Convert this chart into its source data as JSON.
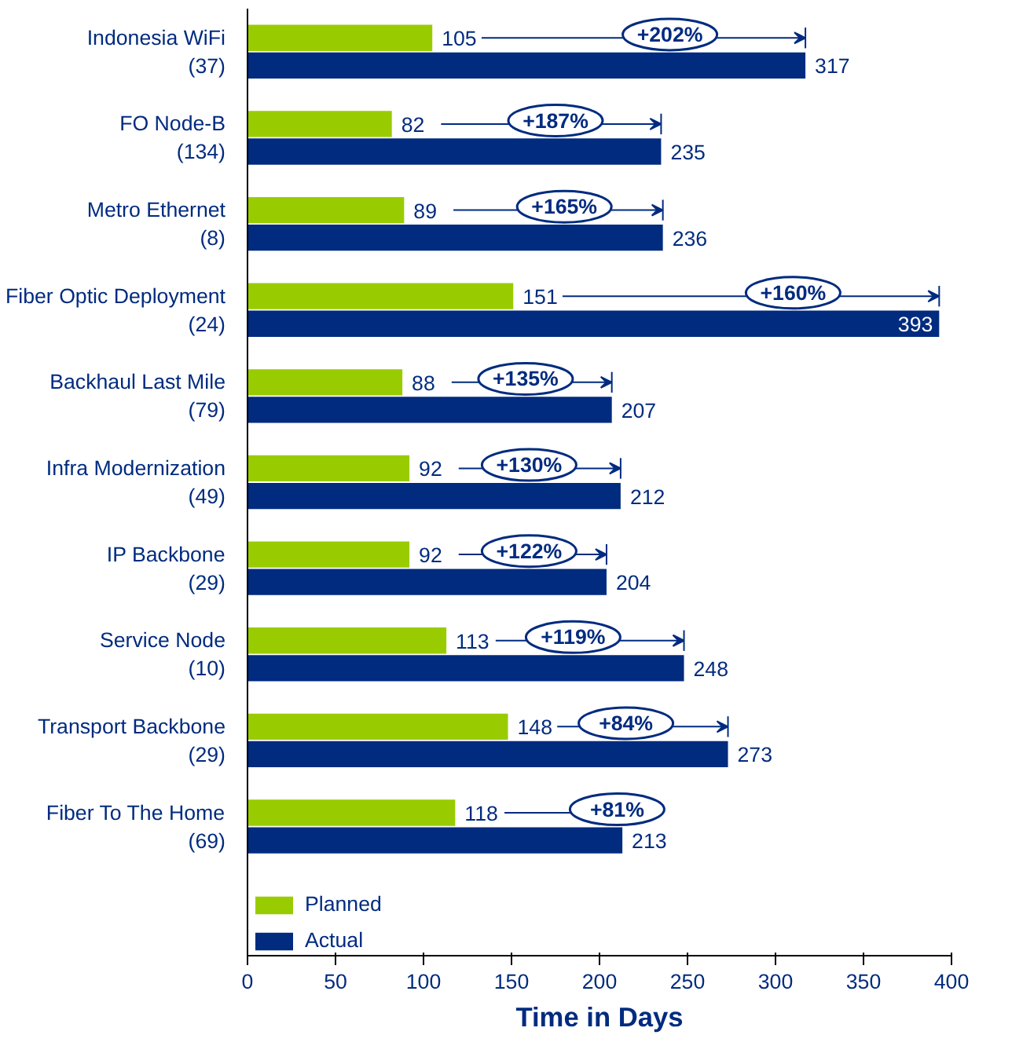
{
  "chart_data": {
    "type": "bar",
    "orientation": "horizontal",
    "xlabel": "Time in Days",
    "categories": [
      "Indonesia WiFi\n(37)",
      "FO Node-B\n(134)",
      "Metro Ethernet\n(8)",
      "Fiber Optic Deployment\n(24)",
      "Backhaul Last Mile\n(79)",
      "Infra Modernization\n(49)",
      "IP Backbone\n(29)",
      "Service Node\n(10)",
      "Transport Backbone\n(29)",
      "Fiber To The Home\n(69)"
    ],
    "series": [
      {
        "name": "Planned",
        "color": "#99cc00",
        "values": [
          105,
          82,
          89,
          151,
          88,
          92,
          92,
          113,
          148,
          118
        ]
      },
      {
        "name": "Actual",
        "color": "#002b7f",
        "values": [
          317,
          235,
          236,
          393,
          207,
          212,
          204,
          248,
          273,
          213
        ]
      }
    ],
    "data_labels": true,
    "annotations": [
      {
        "text": "+202%",
        "x": 240,
        "y": "Indonesia WiFi\n(37)"
      },
      {
        "text": "+187%",
        "x": 175,
        "y": "FO Node-B\n(134)"
      },
      {
        "text": "+165%",
        "x": 180,
        "y": "Metro Ethernet\n(8)"
      },
      {
        "text": "+160%",
        "x": 310,
        "y": "Fiber Optic Deployment\n(24)"
      },
      {
        "text": "+135%",
        "x": 158,
        "y": "Backhaul Last Mile\n(79)"
      },
      {
        "text": "+130%",
        "x": 160,
        "y": "Infra Modernization\n(49)"
      },
      {
        "text": "+122%",
        "x": 160,
        "y": "IP Backbone\n(29)"
      },
      {
        "text": "+119%",
        "x": 185,
        "y": "Service Node\n(10)"
      },
      {
        "text": "+84%",
        "x": 215,
        "y": "Transport Backbone\n(29)"
      },
      {
        "text": "+81%",
        "x": 210,
        "y": "Fiber To The Home\n(69)"
      }
    ],
    "xlim": [
      0,
      400
    ],
    "xticks": [
      0,
      50,
      100,
      150,
      200,
      250,
      300,
      350,
      400
    ],
    "grid": false,
    "legend": "bottom left"
  }
}
